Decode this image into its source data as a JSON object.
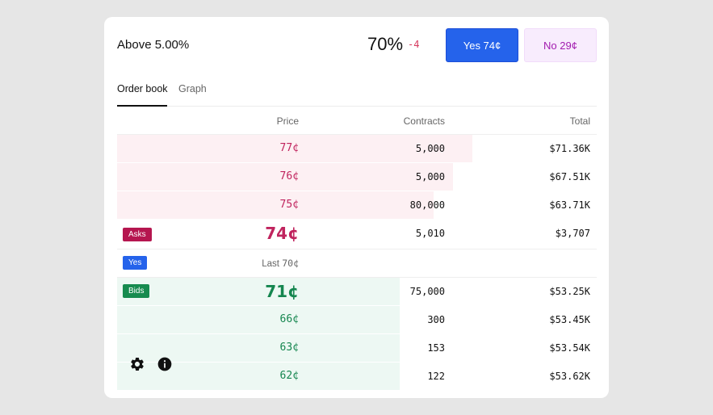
{
  "market": {
    "title": "Above 5.00%",
    "probability": "70%",
    "change": "-4"
  },
  "actions": {
    "yes_label": "Yes 74¢",
    "no_label": "No 29¢"
  },
  "tabs": [
    {
      "label": "Order book",
      "active": true
    },
    {
      "label": "Graph",
      "active": false
    }
  ],
  "orderbook": {
    "headers": {
      "price": "Price",
      "contracts": "Contracts",
      "total": "Total"
    },
    "asks": [
      {
        "price": "77¢",
        "contracts": "5,000",
        "total": "$71.36K",
        "depth": 0.74
      },
      {
        "price": "76¢",
        "contracts": "5,000",
        "total": "$67.51K",
        "depth": 0.7
      },
      {
        "price": "75¢",
        "contracts": "80,000",
        "total": "$63.71K",
        "depth": 0.66
      }
    ],
    "best_ask": {
      "badge": "Asks",
      "price": "74¢",
      "contracts": "5,010",
      "total": "$3,707"
    },
    "last_trade": {
      "badge": "Yes",
      "label": "Last",
      "price": "70¢"
    },
    "best_bid": {
      "badge": "Bids",
      "price": "71¢",
      "contracts": "75,000",
      "total": "$53.25K",
      "depth": 0.59
    },
    "bids": [
      {
        "price": "66¢",
        "contracts": "300",
        "total": "$53.45K",
        "depth": 0.59
      },
      {
        "price": "63¢",
        "contracts": "153",
        "total": "$53.54K",
        "depth": 0.59
      },
      {
        "price": "62¢",
        "contracts": "122",
        "total": "$53.62K",
        "depth": 0.59
      }
    ]
  },
  "colors": {
    "yes_accent": "#2563eb",
    "no_accent": "#a21caf",
    "ask_color": "#c0245e",
    "bid_color": "#15864f"
  },
  "icons": [
    "gear-icon",
    "info-icon"
  ]
}
